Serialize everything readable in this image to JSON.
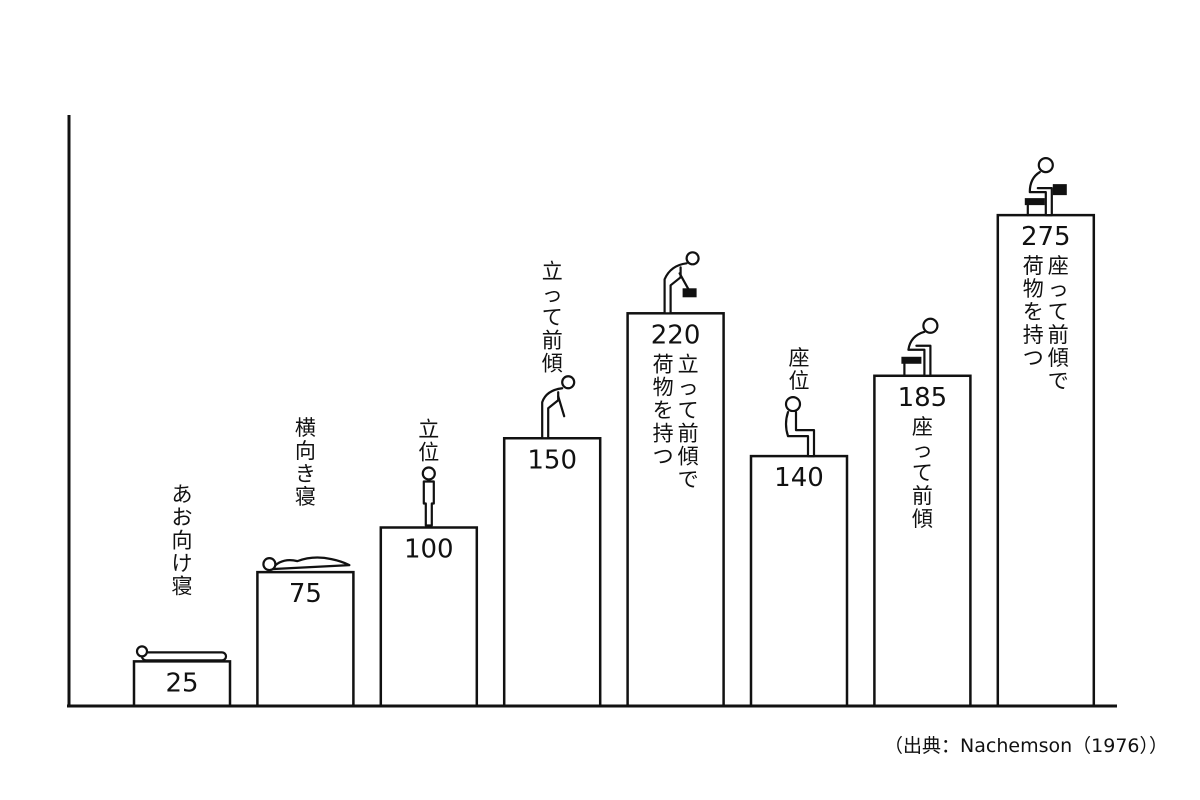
{
  "chart_data": {
    "type": "bar",
    "title": "",
    "xlabel": "",
    "ylabel": "",
    "ylim": [
      0,
      300
    ],
    "grid": false,
    "legend": "none",
    "categories": [
      "あお向け寝",
      "横向き寝",
      "立位",
      "立って前傾",
      "立って前傾で荷物を持つ",
      "座位",
      "座って前傾",
      "座って前傾で荷物を持つ"
    ],
    "values": [
      25,
      75,
      100,
      150,
      220,
      140,
      185,
      275
    ],
    "label_columns": [
      [
        "あお向け寝"
      ],
      [
        "横向き寝"
      ],
      [
        "立位"
      ],
      [
        "立って前傾"
      ],
      [
        "立って前傾で",
        "荷物を持つ"
      ],
      [
        "座位"
      ],
      [
        "座って前傾"
      ],
      [
        "座って前傾で",
        "荷物を持つ"
      ]
    ],
    "label_position": [
      "above",
      "above",
      "above",
      "above",
      "inside",
      "above",
      "inside",
      "inside"
    ],
    "figure_icons": [
      "lying-supine-icon",
      "lying-side-icon",
      "standing-icon",
      "standing-bent-icon",
      "standing-bent-lifting-icon",
      "sitting-icon",
      "sitting-bent-icon",
      "sitting-bent-lifting-icon"
    ]
  },
  "source": "（出典：Nachemson（1976））"
}
